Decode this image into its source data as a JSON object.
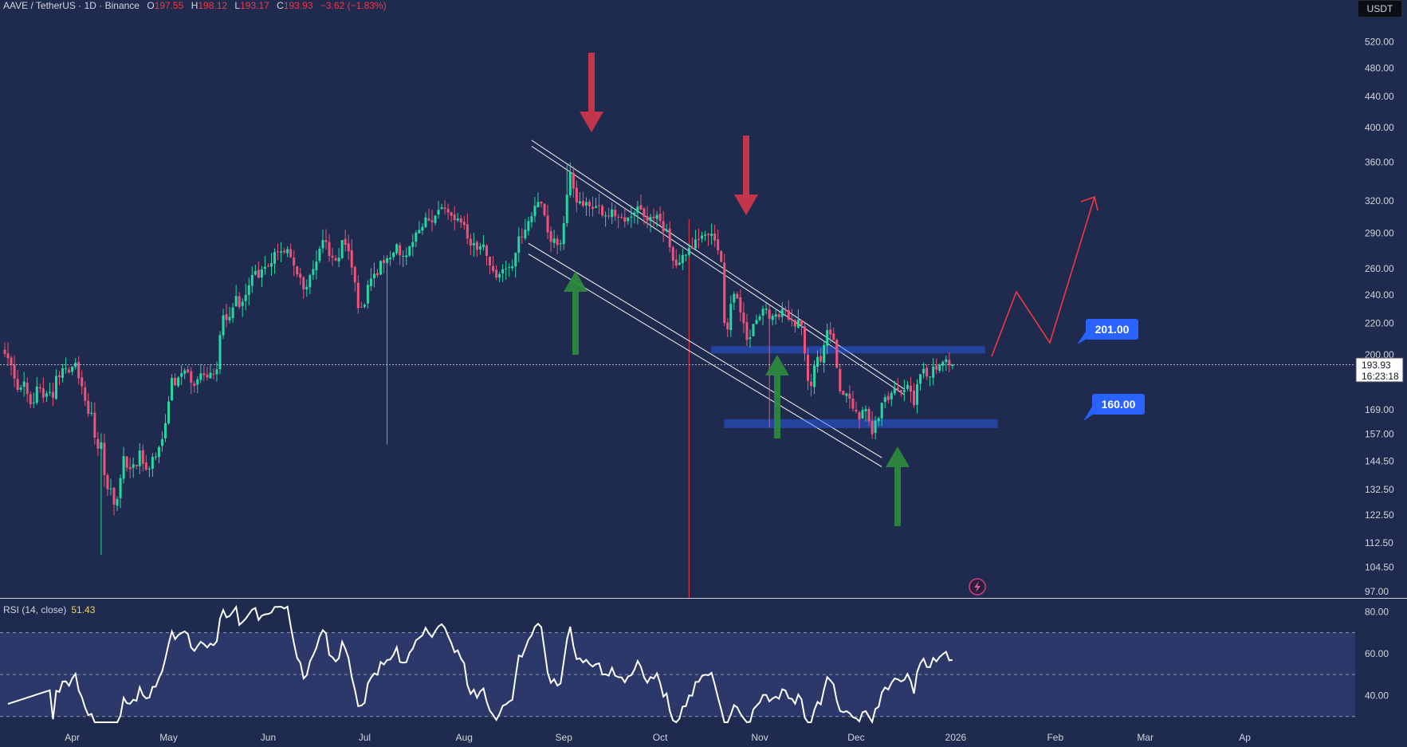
{
  "header": {
    "symbol": "AAVE / TetherUS · 1D · Binance",
    "open_label": "O",
    "open": "197.55",
    "high_label": "H",
    "high": "198.12",
    "low_label": "L",
    "low": "193.17",
    "close_label": "C",
    "close": "193.93",
    "change": "−3.62 (−1.83%)"
  },
  "currency_button": "USDT",
  "price_badge": {
    "price": "193.93",
    "countdown": "16:23:18"
  },
  "rsi_header": {
    "label": "RSI (14, close)",
    "value": "51.43"
  },
  "colors": {
    "background": "#1f2b4e",
    "up": "#26d9a2",
    "down": "#f1527a",
    "arrow_red": "#d0364a",
    "arrow_green": "#2e8b3e",
    "zone": "#2962ff",
    "projection": "#f23645"
  },
  "chart_data": [
    {
      "type": "candlestick",
      "y_scale": "log",
      "ylim": [
        97,
        540
      ],
      "y_ticks": [
        "520.00",
        "480.00",
        "440.00",
        "400.00",
        "360.00",
        "320.00",
        "290.00",
        "260.00",
        "240.00",
        "220.00",
        "200.00",
        "169.00",
        "157.00",
        "144.50",
        "132.50",
        "122.50",
        "112.50",
        "104.50",
        "97.00"
      ],
      "x_ticks": [
        "Apr",
        "May",
        "Jun",
        "Jul",
        "Aug",
        "Sep",
        "Oct",
        "Nov",
        "Dec",
        "2026",
        "Feb",
        "Mar",
        "Ap"
      ],
      "x_start": "2025-03-11",
      "last_price": 193.93,
      "closes": [
        200.5,
        197.9,
        193.6,
        185.9,
        179.6,
        180.9,
        184.2,
        177.4,
        171.9,
        172.8,
        181.5,
        180.4,
        175.5,
        177.7,
        178.4,
        175.3,
        187.4,
        186.7,
        191.8,
        191.9,
        189.5,
        192.9,
        195.1,
        186.1,
        181.6,
        173.7,
        167.0,
        167.5,
        155.2,
        150.1,
        153.0,
        138.4,
        132.6,
        132.9,
        126.5,
        128.7,
        137.2,
        146.7,
        141.6,
        141.0,
        143.1,
        142.2,
        149.2,
        143.3,
        140.8,
        141.2,
        146.4,
        146.5,
        150.8,
        154.5,
        162.2,
        173.3,
        186.2,
        182.3,
        186.5,
        188.9,
        190.6,
        189.5,
        183.5,
        181.8,
        185.5,
        188.9,
        187.9,
        186.6,
        189.2,
        188.6,
        191.2,
        212.3,
        225.5,
        222.3,
        224.4,
        231.0,
        239.3,
        231.3,
        235.1,
        240.0,
        247.2,
        255.1,
        258.2,
        252.9,
        259.5,
        261.6,
        262.3,
        264.5,
        273.6,
        273.8,
        274.1,
        273.5,
        276.1,
        269.4,
        262.6,
        255.6,
        253.1,
        244.2,
        246.1,
        255.0,
        259.7,
        265.7,
        276.4,
        283.8,
        282.2,
        270.5,
        269.0,
        266.6,
        269.0,
        283.8,
        279.8,
        274.3,
        261.0,
        249.4,
        230.7,
        231.2,
        233.0,
        247.5,
        252.3,
        256.1,
        254.9,
        266.3,
        264.4,
        268.5,
        269.0,
        273.1,
        280.2,
        270.9,
        270.4,
        270.8,
        278.6,
        282.2,
        290.3,
        292.8,
        295.5,
        304.1,
        301.4,
        299.8,
        305.8,
        311.2,
        313.8,
        312.2,
        308.9,
        305.8,
        301.7,
        303.1,
        299.4,
        297.2,
        285.2,
        279.1,
        281.2,
        275.4,
        278.5,
        280.0,
        270.5,
        262.6,
        258.3,
        253.2,
        255.8,
        259.5,
        260.1,
        261.3,
        262.0,
        273.0,
        287.0,
        286.3,
        293.0,
        300.8,
        305.2,
        315.0,
        318.9,
        317.4,
        306.2,
        290.6,
        282.3,
        285.1,
        279.6,
        281.1,
        298.8,
        326.0,
        349.4,
        332.2,
        318.4,
        319.5,
        315.2,
        318.7,
        314.6,
        312.2,
        314.8,
        315.6,
        305.9,
        306.1,
        305.0,
        311.6,
        305.3,
        304.1,
        303.9,
        300.3,
        304.1,
        305.0,
        308.6,
        314.6,
        311.4,
        304.7,
        301.2,
        304.5,
        303.6,
        306.5,
        300.8,
        291.3,
        292.9,
        277.8,
        266.5,
        262.6,
        264.9,
        271.1,
        271.3,
        277.0,
        276.6,
        284.3,
        284.4,
        287.7,
        288.4,
        288.1,
        289.4,
        283.3,
        275.0,
        265.6,
        220.3,
        216.0,
        233.6,
        240.8,
        237.4,
        227.6,
        220.2,
        209.2,
        210.9,
        219.7,
        222.3,
        224.8,
        230.1,
        230.2,
        223.2,
        225.1,
        226.2,
        224.3,
        229.9,
        228.9,
        222.6,
        222.1,
        218.0,
        222.6,
        218.9,
        200.7,
        184.6,
        181.7,
        193.5,
        198.6,
        195.8,
        206.0,
        215.6,
        212.7,
        209.2,
        192.0,
        178.8,
        176.9,
        177.6,
        174.9,
        169.6,
        168.1,
        164.1,
        168.9,
        169.5,
        163.2,
        156.9,
        163.5,
        164.7,
        172.6,
        175.6,
        174.1,
        177.9,
        180.5,
        179.9,
        178.7,
        179.5,
        182.4,
        178.7,
        171.4,
        182.7,
        188.4,
        191.5,
        187.1,
        187.0,
        192.8,
        191.1,
        193.9,
        195.7,
        197.1,
        193.6,
        193.9
      ],
      "annotations": [
        "201.00",
        "160.00"
      ]
    },
    {
      "type": "line",
      "name": "RSI (14, close)",
      "ylim": [
        28,
        82
      ],
      "y_ticks": [
        "80.00",
        "60.00",
        "40.00"
      ],
      "levels": [
        70,
        50,
        30
      ]
    }
  ]
}
